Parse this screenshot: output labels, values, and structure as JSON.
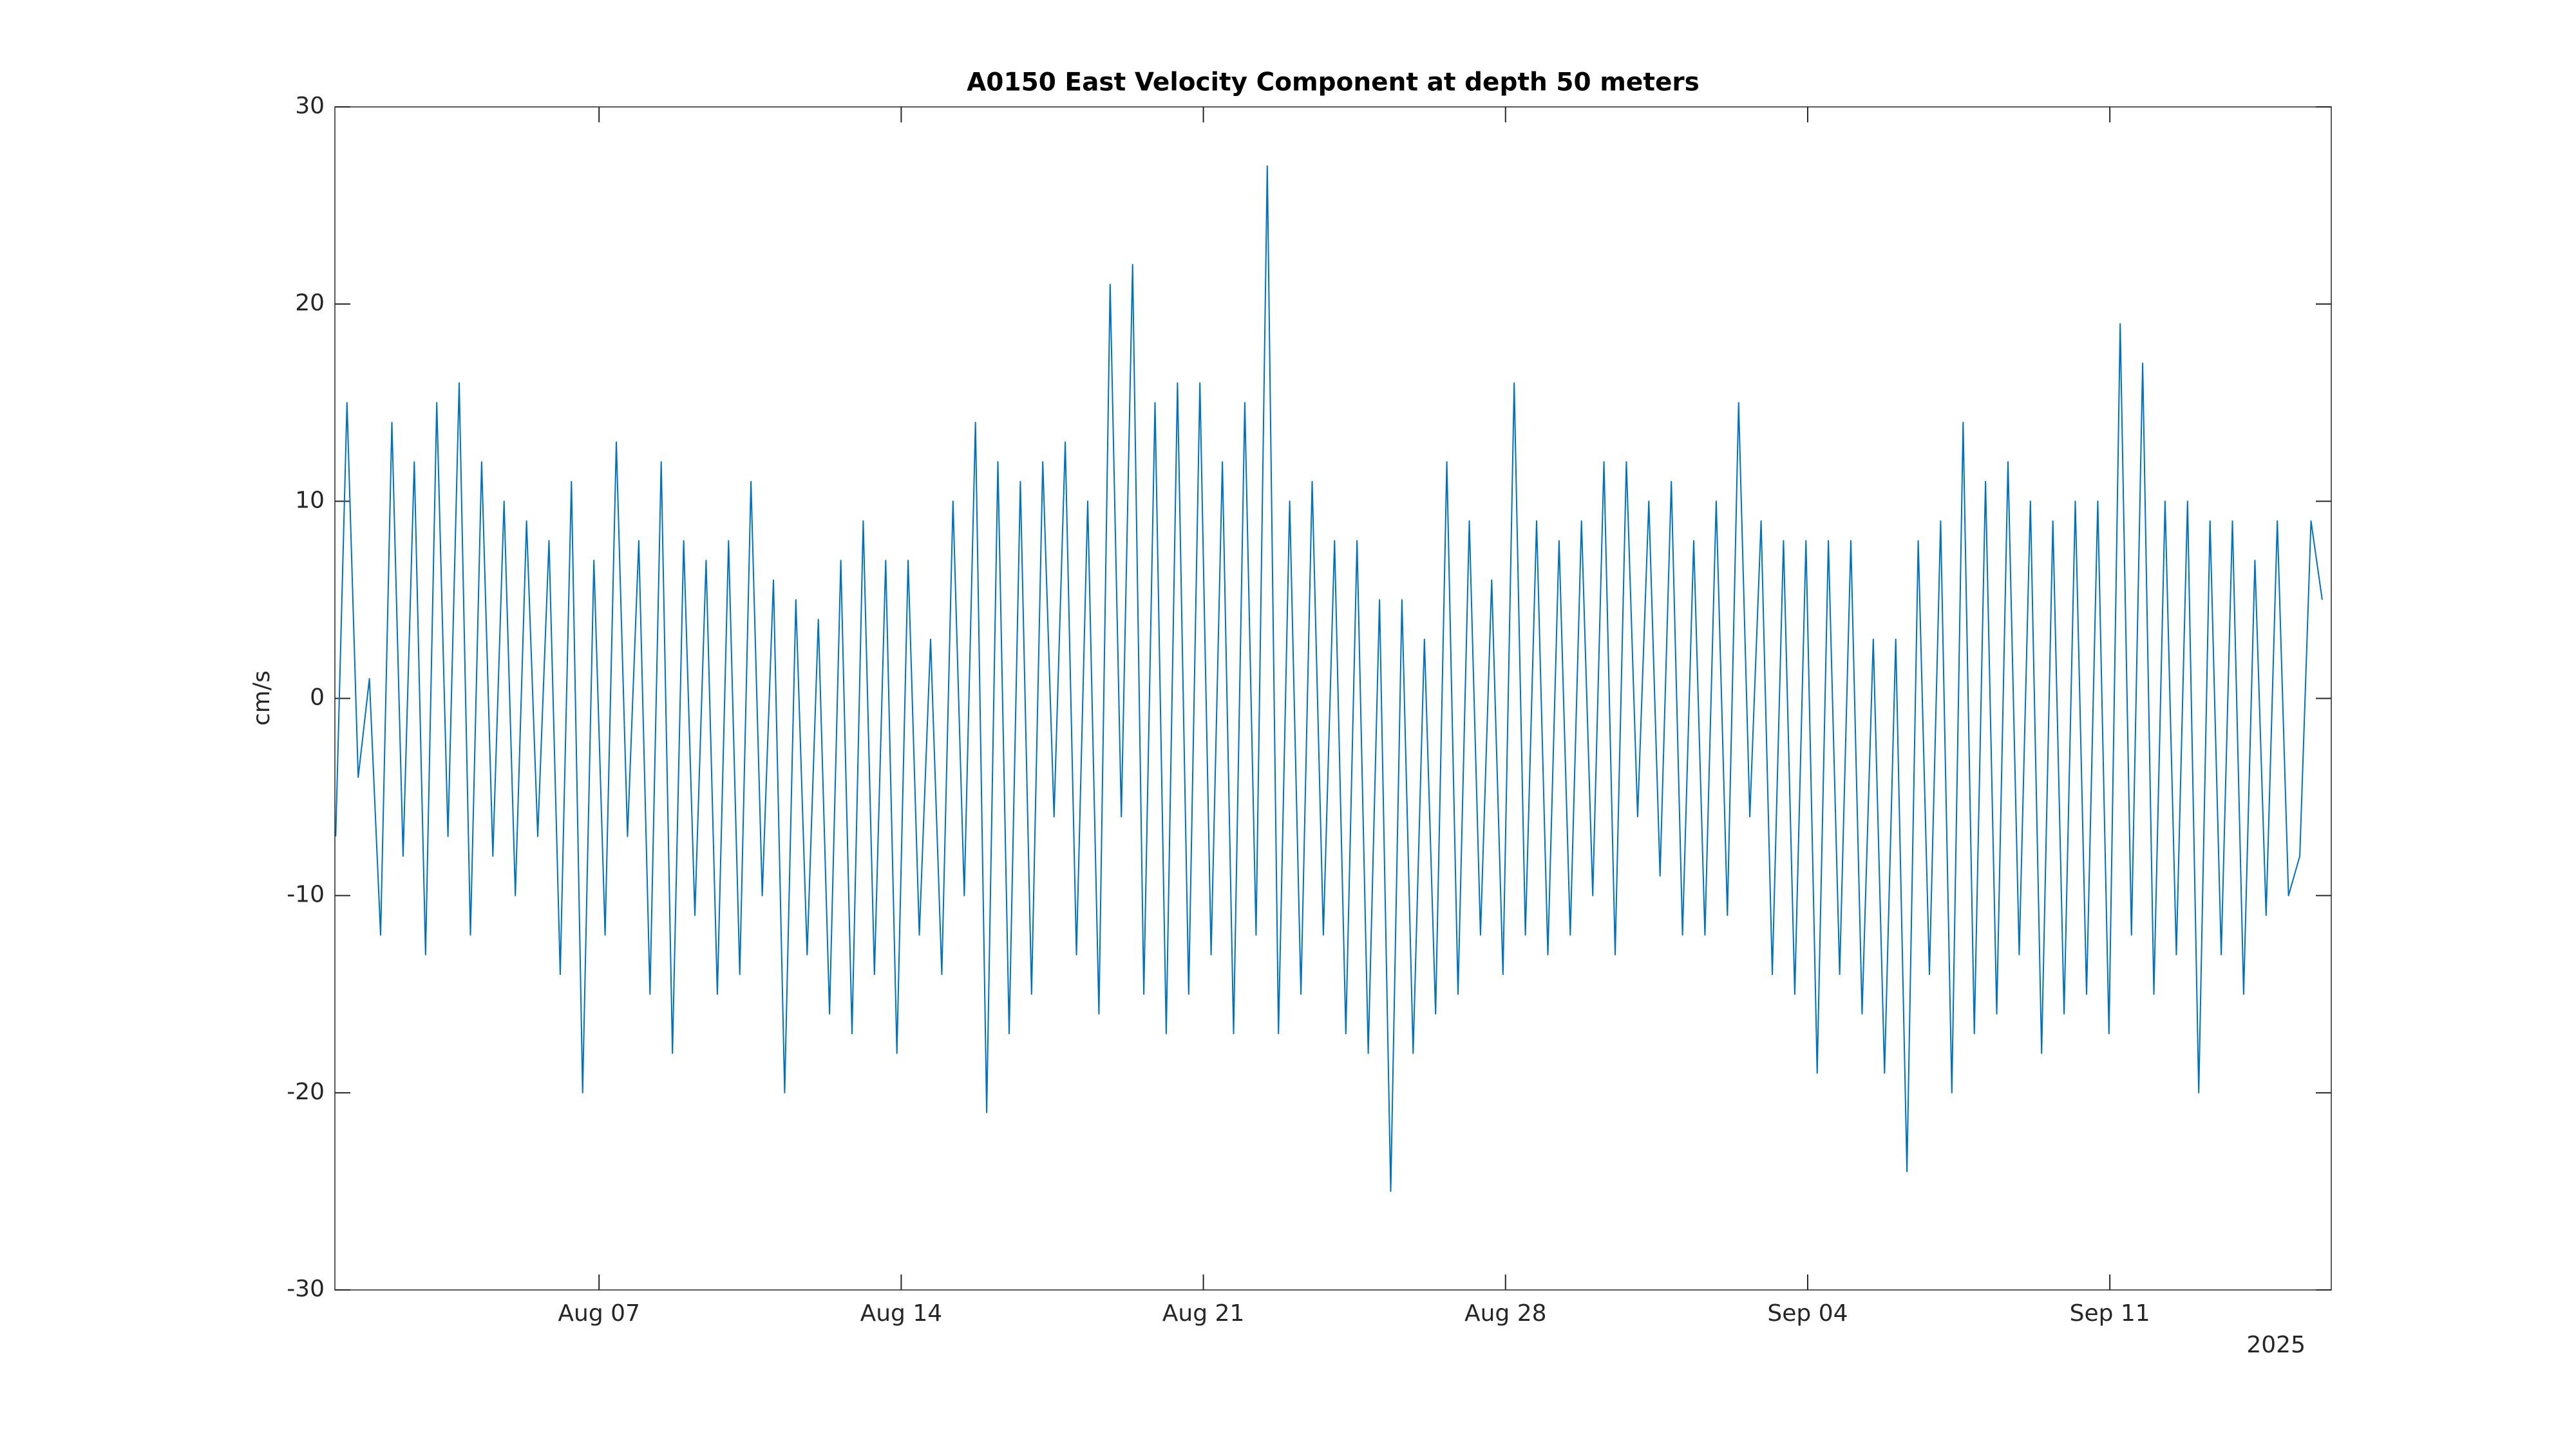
{
  "chart_data": {
    "type": "line",
    "title": "A0150 East Velocity Component at depth 50 meters",
    "ylabel": "cm/s",
    "xlabel_secondary": "2025",
    "color": "#0072bd",
    "xlim": [
      0.88,
      47.13
    ],
    "ylim": [
      -30,
      30
    ],
    "yticks": [
      -30,
      -20,
      -10,
      0,
      10,
      20,
      30
    ],
    "xticks": [
      {
        "value": 7,
        "label": "Aug 07"
      },
      {
        "value": 14,
        "label": "Aug 14"
      },
      {
        "value": 21,
        "label": "Aug 21"
      },
      {
        "value": 28,
        "label": "Aug 28"
      },
      {
        "value": 35,
        "label": "Sep 04"
      },
      {
        "value": 42,
        "label": "Sep 11"
      }
    ],
    "x": [
      0.9,
      1.16,
      1.42,
      1.68,
      1.94,
      2.2,
      2.46,
      2.72,
      2.98,
      3.24,
      3.5,
      3.76,
      4.02,
      4.28,
      4.54,
      4.8,
      5.06,
      5.32,
      5.58,
      5.84,
      6.1,
      6.36,
      6.62,
      6.88,
      7.14,
      7.4,
      7.66,
      7.92,
      8.18,
      8.44,
      8.7,
      8.96,
      9.22,
      9.48,
      9.74,
      10,
      10.26,
      10.52,
      10.78,
      11.04,
      11.3,
      11.56,
      11.82,
      12.08,
      12.34,
      12.6,
      12.86,
      13.12,
      13.38,
      13.64,
      13.9,
      14.16,
      14.42,
      14.68,
      14.94,
      15.2,
      15.46,
      15.72,
      15.98,
      16.24,
      16.5,
      16.76,
      17.02,
      17.28,
      17.54,
      17.8,
      18.06,
      18.32,
      18.58,
      18.84,
      19.1,
      19.36,
      19.62,
      19.88,
      20.14,
      20.4,
      20.66,
      20.92,
      21.18,
      21.44,
      21.7,
      21.96,
      22.22,
      22.48,
      22.74,
      23,
      23.26,
      23.52,
      23.78,
      24.04,
      24.3,
      24.56,
      24.82,
      25.08,
      25.34,
      25.6,
      25.86,
      26.12,
      26.38,
      26.64,
      26.9,
      27.16,
      27.42,
      27.68,
      27.94,
      28.2,
      28.46,
      28.72,
      28.98,
      29.24,
      29.5,
      29.76,
      30.02,
      30.28,
      30.54,
      30.8,
      31.06,
      31.32,
      31.58,
      31.84,
      32.1,
      32.36,
      32.62,
      32.88,
      33.14,
      33.4,
      33.66,
      33.92,
      34.18,
      34.44,
      34.7,
      34.96,
      35.22,
      35.48,
      35.74,
      36,
      36.26,
      36.52,
      36.78,
      37.04,
      37.3,
      37.56,
      37.82,
      38.08,
      38.34,
      38.6,
      38.86,
      39.12,
      39.38,
      39.64,
      39.9,
      40.16,
      40.42,
      40.68,
      40.94,
      41.2,
      41.46,
      41.72,
      41.98,
      42.24,
      42.5,
      42.76,
      43.02,
      43.28,
      43.54,
      43.8,
      44.06,
      44.32,
      44.58,
      44.84,
      45.1,
      45.36,
      45.62,
      45.88,
      46.14,
      46.4,
      46.66,
      46.92
    ],
    "values": [
      -7,
      15,
      -4,
      1,
      -12,
      14,
      -8,
      12,
      -13,
      15,
      -7,
      16,
      -12,
      12,
      -8,
      10,
      -10,
      9,
      -7,
      8,
      -14,
      11,
      -20,
      7,
      -12,
      13,
      -7,
      8,
      -15,
      12,
      -18,
      8,
      -11,
      7,
      -15,
      8,
      -14,
      11,
      -10,
      6,
      -20,
      5,
      -13,
      4,
      -16,
      7,
      -17,
      9,
      -14,
      7,
      -18,
      7,
      -12,
      3,
      -14,
      10,
      -10,
      14,
      -21,
      12,
      -17,
      11,
      -15,
      12,
      -6,
      13,
      -13,
      10,
      -16,
      21,
      -6,
      22,
      -15,
      15,
      -17,
      16,
      -15,
      16,
      -13,
      12,
      -17,
      15,
      -12,
      27,
      -17,
      10,
      -15,
      11,
      -12,
      8,
      -17,
      8,
      -18,
      5,
      -25,
      5,
      -18,
      3,
      -16,
      12,
      -15,
      9,
      -12,
      6,
      -14,
      16,
      -12,
      9,
      -13,
      8,
      -12,
      9,
      -10,
      12,
      -13,
      12,
      -6,
      10,
      -9,
      11,
      -12,
      8,
      -12,
      10,
      -11,
      15,
      -6,
      9,
      -14,
      8,
      -15,
      8,
      -19,
      8,
      -14,
      8,
      -16,
      3,
      -19,
      3,
      -24,
      8,
      -14,
      9,
      -20,
      14,
      -17,
      11,
      -16,
      12,
      -13,
      10,
      -18,
      9,
      -16,
      10,
      -15,
      10,
      -17,
      19,
      -12,
      17,
      -15,
      10,
      -13,
      10,
      -20,
      9,
      -13,
      9,
      -15,
      7,
      -11,
      9,
      -10,
      -8,
      9,
      5
    ]
  }
}
